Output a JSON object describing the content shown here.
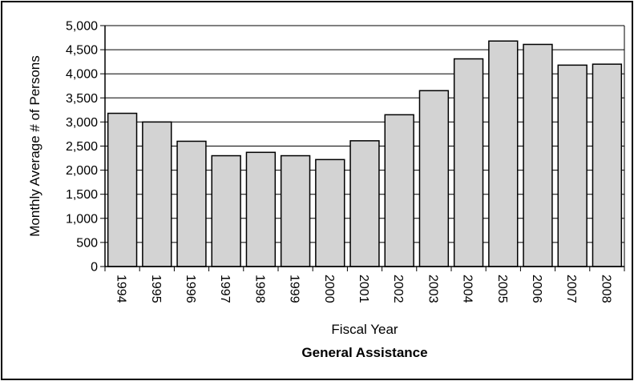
{
  "chart_data": {
    "type": "bar",
    "title": "",
    "caption": "General Assistance",
    "xlabel": "Fiscal Year",
    "ylabel": "Monthly Average # of Persons",
    "categories": [
      "1994",
      "1995",
      "1996",
      "1997",
      "1998",
      "1999",
      "2000",
      "2001",
      "2002",
      "2003",
      "2004",
      "2005",
      "2006",
      "2007",
      "2008"
    ],
    "values": [
      3180,
      3000,
      2600,
      2300,
      2370,
      2300,
      2220,
      2610,
      3150,
      3650,
      4310,
      4680,
      4610,
      4180,
      4200
    ],
    "ylim": [
      0,
      5000
    ],
    "yticks": [
      "0",
      "500",
      "1,000",
      "1,500",
      "2,000",
      "2,500",
      "3,000",
      "3,500",
      "4,000",
      "4,500",
      "5,000"
    ],
    "yticks_values": [
      0,
      500,
      1000,
      1500,
      2000,
      2500,
      3000,
      3500,
      4000,
      4500,
      5000
    ],
    "grid": true,
    "legend": "none",
    "colors": {
      "bar_fill": "#d3d3d3",
      "bar_stroke": "#000000",
      "grid": "#000000"
    }
  }
}
